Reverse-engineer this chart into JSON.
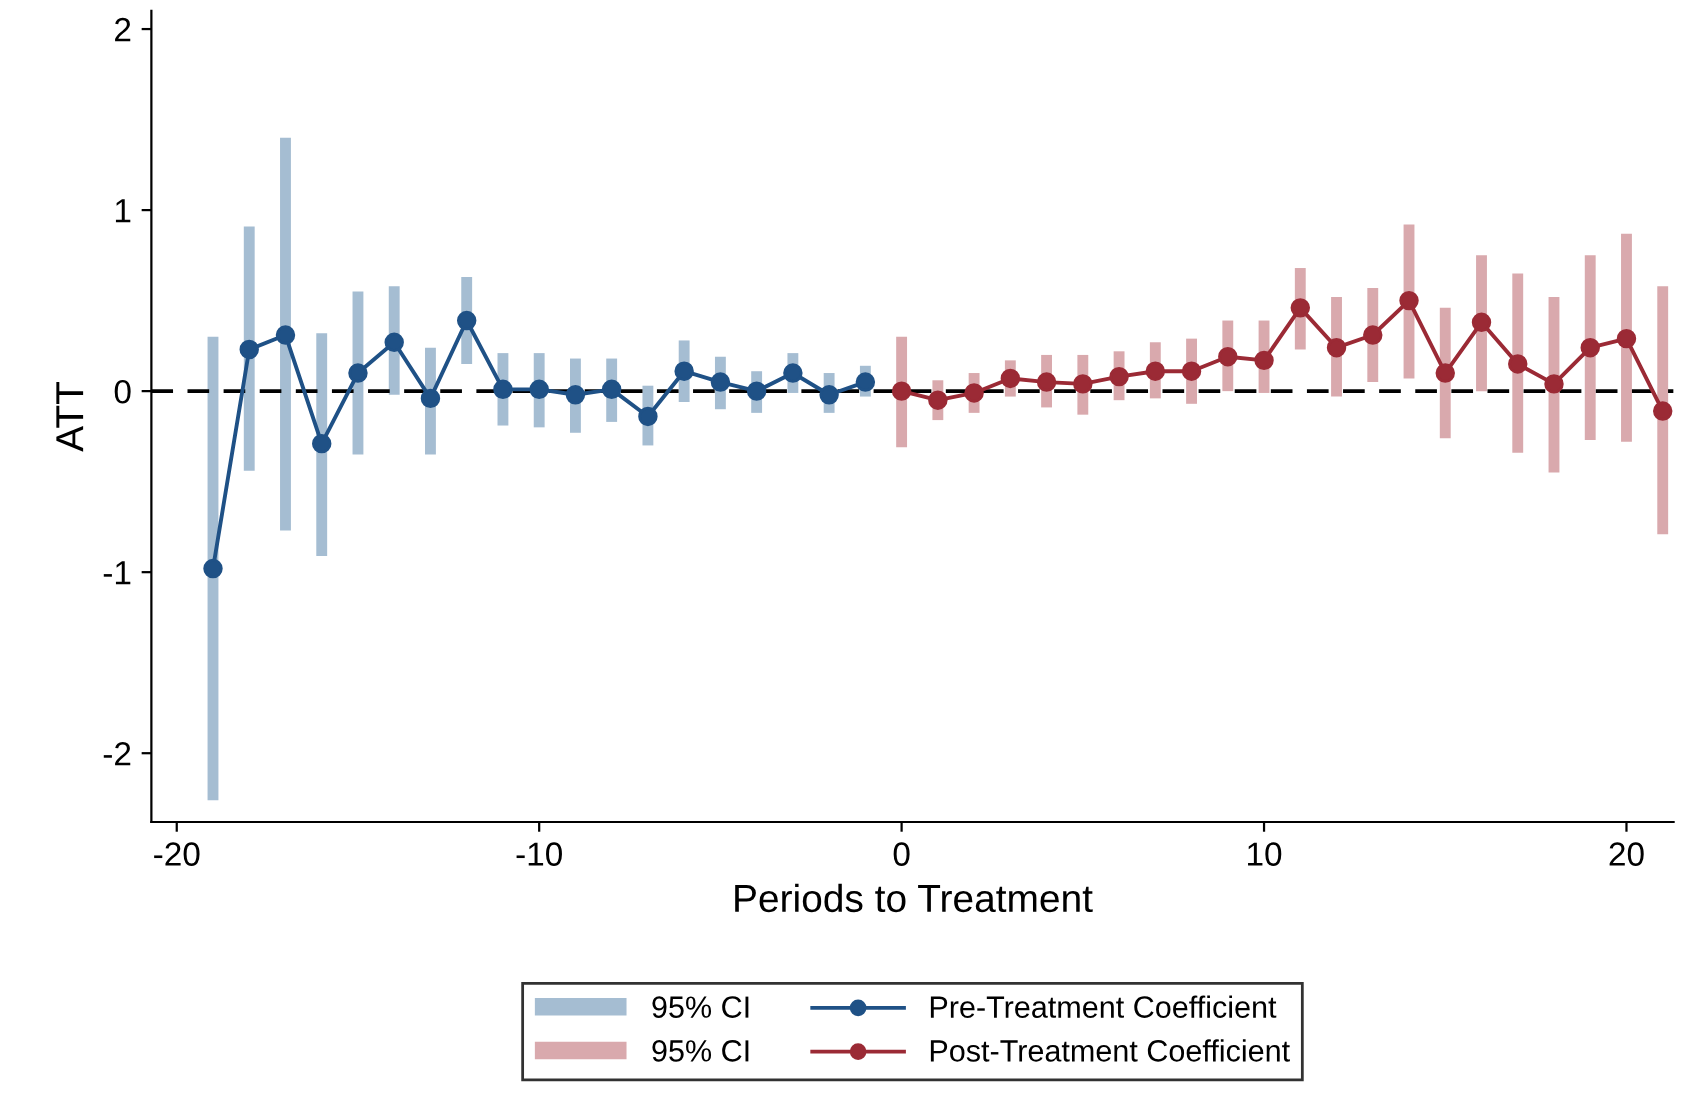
{
  "chart_data": {
    "type": "line",
    "xlabel": "Periods to Treatment",
    "ylabel": "ATT",
    "xlim": [
      -20.7,
      21.3
    ],
    "ylim": [
      -2.38,
      2.1
    ],
    "xticks": [
      -20,
      -10,
      0,
      10,
      20
    ],
    "yticks": [
      -2,
      -1,
      0,
      1,
      2
    ],
    "grid": false,
    "legend": "bottom",
    "marker": "circle",
    "line_style": "solid",
    "ref_lines": [
      {
        "axis": "y",
        "value": 0,
        "color": "#000000",
        "line_style": "dashed"
      }
    ],
    "series": [
      {
        "type": "bar",
        "name": "95% CI",
        "color": "#a5bdd2",
        "x": [
          -19,
          -18,
          -17,
          -16,
          -15,
          -14,
          -13,
          -12,
          -11,
          -10,
          -9,
          -8,
          -7,
          -6,
          -5,
          -4,
          -3,
          -2,
          -1
        ],
        "base": [
          -2.26,
          -0.44,
          -0.77,
          -0.91,
          -0.35,
          -0.02,
          -0.35,
          0.15,
          -0.19,
          -0.2,
          -0.23,
          -0.17,
          -0.3,
          -0.06,
          -0.1,
          -0.12,
          -0.01,
          -0.12,
          -0.03
        ],
        "values": [
          2.56,
          1.35,
          2.17,
          1.23,
          0.9,
          0.6,
          0.59,
          0.48,
          0.4,
          0.41,
          0.41,
          0.35,
          0.33,
          0.34,
          0.29,
          0.23,
          0.22,
          0.22,
          0.17
        ]
      },
      {
        "type": "bar",
        "name": "95% CI",
        "color": "#d9a9ad",
        "x": [
          0,
          1,
          2,
          3,
          4,
          5,
          6,
          7,
          8,
          9,
          10,
          11,
          12,
          13,
          14,
          15,
          16,
          17,
          18,
          19,
          20,
          21
        ],
        "base": [
          -0.31,
          -0.16,
          -0.12,
          -0.03,
          -0.09,
          -0.13,
          -0.05,
          -0.04,
          -0.07,
          0.0,
          -0.01,
          0.23,
          -0.03,
          0.05,
          0.07,
          -0.26,
          0.0,
          -0.34,
          -0.45,
          -0.27,
          -0.28,
          -0.79
        ],
        "values": [
          0.61,
          0.22,
          0.22,
          0.2,
          0.29,
          0.33,
          0.27,
          0.31,
          0.36,
          0.39,
          0.4,
          0.45,
          0.55,
          0.52,
          0.85,
          0.72,
          0.75,
          0.99,
          0.97,
          1.02,
          1.15,
          1.37
        ]
      },
      {
        "name": "Pre-Treatment Coefficient",
        "color": "#1f5186",
        "x": [
          -19,
          -18,
          -17,
          -16,
          -15,
          -14,
          -13,
          -12,
          -11,
          -10,
          -9,
          -8,
          -7,
          -6,
          -5,
          -4,
          -3,
          -2,
          -1
        ],
        "values": [
          -0.98,
          0.23,
          0.31,
          -0.29,
          0.1,
          0.27,
          -0.04,
          0.39,
          0.01,
          0.01,
          -0.02,
          0.01,
          -0.14,
          0.11,
          0.05,
          0.0,
          0.1,
          -0.02,
          0.05
        ]
      },
      {
        "name": "Post-Treatment Coefficient",
        "color": "#9b2a35",
        "x": [
          0,
          1,
          2,
          3,
          4,
          5,
          6,
          7,
          8,
          9,
          10,
          11,
          12,
          13,
          14,
          15,
          16,
          17,
          18,
          19,
          20,
          21
        ],
        "values": [
          0.0,
          -0.05,
          -0.01,
          0.07,
          0.05,
          0.04,
          0.08,
          0.11,
          0.11,
          0.19,
          0.17,
          0.46,
          0.24,
          0.31,
          0.5,
          0.1,
          0.38,
          0.15,
          0.04,
          0.24,
          0.29,
          -0.11
        ]
      }
    ]
  }
}
